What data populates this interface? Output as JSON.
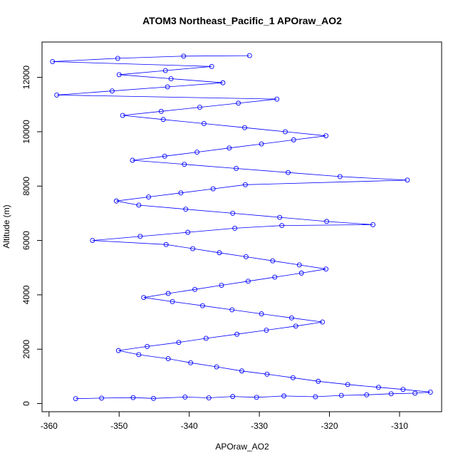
{
  "chart_data": {
    "type": "scatter",
    "title": "ATOM3 Northeast_Pacific_1 APOraw_AO2",
    "xlabel": "APOraw_AO2",
    "ylabel": "Altitude (m)",
    "xlim": [
      -361,
      -304
    ],
    "ylim": [
      -300,
      13300
    ],
    "xticks": [
      -360,
      -350,
      -340,
      -330,
      -320,
      -310
    ],
    "yticks": [
      0,
      2000,
      4000,
      6000,
      8000,
      10000,
      12000
    ],
    "grid": false,
    "legend": "none",
    "point_style": "open-circle",
    "connected": true,
    "color": "#0000ff",
    "series": [
      {
        "points": [
          [
            -356.2,
            180
          ],
          [
            -352.5,
            200
          ],
          [
            -348.0,
            220
          ],
          [
            -345.1,
            190
          ],
          [
            -340.6,
            240
          ],
          [
            -337.2,
            210
          ],
          [
            -333.8,
            260
          ],
          [
            -330.4,
            230
          ],
          [
            -326.5,
            280
          ],
          [
            -322.0,
            250
          ],
          [
            -318.3,
            300
          ],
          [
            -314.7,
            320
          ],
          [
            -311.2,
            360
          ],
          [
            -307.8,
            380
          ],
          [
            -305.6,
            420
          ],
          [
            -309.5,
            520
          ],
          [
            -313.0,
            600
          ],
          [
            -317.4,
            700
          ],
          [
            -321.6,
            820
          ],
          [
            -325.2,
            950
          ],
          [
            -328.9,
            1080
          ],
          [
            -332.5,
            1200
          ],
          [
            -336.1,
            1350
          ],
          [
            -339.8,
            1500
          ],
          [
            -343.0,
            1650
          ],
          [
            -347.2,
            1800
          ],
          [
            -350.1,
            1950
          ],
          [
            -346.0,
            2100
          ],
          [
            -341.5,
            2250
          ],
          [
            -337.6,
            2400
          ],
          [
            -333.2,
            2550
          ],
          [
            -329.0,
            2700
          ],
          [
            -324.8,
            2850
          ],
          [
            -321.0,
            3000
          ],
          [
            -325.4,
            3150
          ],
          [
            -329.7,
            3300
          ],
          [
            -333.9,
            3450
          ],
          [
            -338.1,
            3600
          ],
          [
            -342.4,
            3750
          ],
          [
            -346.5,
            3900
          ],
          [
            -343.0,
            4050
          ],
          [
            -339.2,
            4200
          ],
          [
            -335.4,
            4350
          ],
          [
            -331.6,
            4500
          ],
          [
            -327.8,
            4650
          ],
          [
            -324.0,
            4800
          ],
          [
            -320.5,
            4950
          ],
          [
            -324.3,
            5100
          ],
          [
            -328.1,
            5250
          ],
          [
            -331.9,
            5400
          ],
          [
            -335.7,
            5550
          ],
          [
            -339.5,
            5700
          ],
          [
            -343.3,
            5850
          ],
          [
            -353.8,
            6000
          ],
          [
            -347.0,
            6150
          ],
          [
            -340.2,
            6300
          ],
          [
            -333.5,
            6450
          ],
          [
            -326.8,
            6550
          ],
          [
            -313.8,
            6580
          ],
          [
            -320.4,
            6700
          ],
          [
            -327.1,
            6850
          ],
          [
            -333.8,
            7000
          ],
          [
            -340.5,
            7150
          ],
          [
            -347.2,
            7300
          ],
          [
            -350.4,
            7450
          ],
          [
            -345.8,
            7600
          ],
          [
            -341.2,
            7750
          ],
          [
            -336.6,
            7900
          ],
          [
            -332.0,
            8050
          ],
          [
            -308.9,
            8220
          ],
          [
            -318.5,
            8350
          ],
          [
            -325.9,
            8500
          ],
          [
            -333.3,
            8650
          ],
          [
            -340.7,
            8800
          ],
          [
            -348.1,
            8950
          ],
          [
            -343.5,
            9100
          ],
          [
            -338.9,
            9250
          ],
          [
            -334.3,
            9400
          ],
          [
            -329.7,
            9550
          ],
          [
            -325.1,
            9700
          ],
          [
            -320.5,
            9850
          ],
          [
            -326.3,
            10000
          ],
          [
            -332.1,
            10150
          ],
          [
            -337.9,
            10300
          ],
          [
            -343.7,
            10450
          ],
          [
            -349.5,
            10600
          ],
          [
            -344.0,
            10750
          ],
          [
            -338.5,
            10900
          ],
          [
            -333.0,
            11050
          ],
          [
            -327.5,
            11200
          ],
          [
            -358.9,
            11350
          ],
          [
            -351.0,
            11500
          ],
          [
            -343.1,
            11650
          ],
          [
            -335.2,
            11800
          ],
          [
            -342.6,
            11950
          ],
          [
            -350.0,
            12100
          ],
          [
            -343.4,
            12250
          ],
          [
            -336.8,
            12400
          ],
          [
            -359.5,
            12580
          ],
          [
            -350.2,
            12700
          ],
          [
            -340.8,
            12780
          ],
          [
            -331.4,
            12800
          ]
        ]
      }
    ]
  }
}
